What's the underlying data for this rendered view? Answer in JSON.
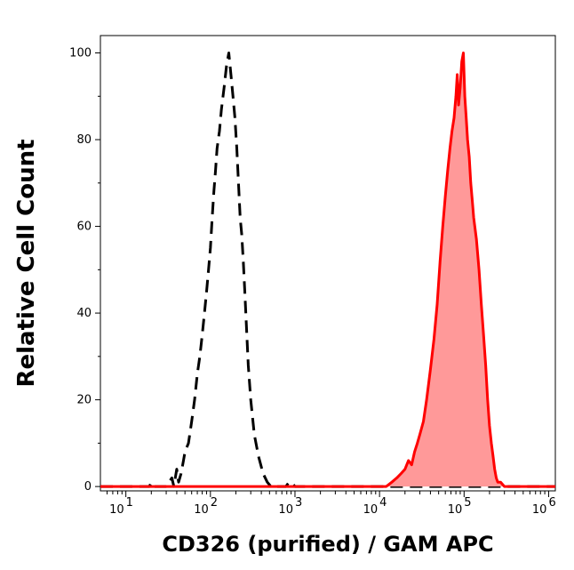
{
  "chart_data": {
    "type": "area",
    "xlabel": "CD326 (purified) / GAM APC",
    "ylabel": "Relative Cell Count",
    "x_scale": "log",
    "xlim": [
      5,
      1200000
    ],
    "ylim": [
      -1,
      104
    ],
    "x_ticks": [
      {
        "value": 10,
        "base": "10",
        "exp": "1"
      },
      {
        "value": 100,
        "base": "10",
        "exp": "2"
      },
      {
        "value": 1000,
        "base": "10",
        "exp": "3"
      },
      {
        "value": 10000,
        "base": "10",
        "exp": "4"
      },
      {
        "value": 100000,
        "base": "10",
        "exp": "5"
      },
      {
        "value": 1000000,
        "base": "10",
        "exp": "6"
      }
    ],
    "y_ticks": [
      0,
      20,
      40,
      60,
      80,
      100
    ],
    "grid": false,
    "legend": "none",
    "series": [
      {
        "style": "dashed",
        "color": "#000000",
        "fill": false,
        "points": [
          [
            5,
            0
          ],
          [
            19,
            0
          ],
          [
            20,
            1
          ],
          [
            22,
            0
          ],
          [
            30,
            0
          ],
          [
            35,
            2
          ],
          [
            37,
            0
          ],
          [
            40,
            4
          ],
          [
            42,
            1
          ],
          [
            45,
            3
          ],
          [
            48,
            6
          ],
          [
            50,
            8
          ],
          [
            55,
            10
          ],
          [
            60,
            15
          ],
          [
            65,
            20
          ],
          [
            70,
            26
          ],
          [
            75,
            30
          ],
          [
            80,
            35
          ],
          [
            85,
            40
          ],
          [
            90,
            45
          ],
          [
            95,
            50
          ],
          [
            100,
            55
          ],
          [
            105,
            62
          ],
          [
            110,
            68
          ],
          [
            115,
            73
          ],
          [
            120,
            78
          ],
          [
            128,
            82
          ],
          [
            135,
            87
          ],
          [
            145,
            92
          ],
          [
            155,
            97
          ],
          [
            165,
            100
          ],
          [
            175,
            95
          ],
          [
            185,
            90
          ],
          [
            195,
            85
          ],
          [
            205,
            78
          ],
          [
            215,
            70
          ],
          [
            225,
            62
          ],
          [
            235,
            58
          ],
          [
            245,
            52
          ],
          [
            255,
            45
          ],
          [
            265,
            38
          ],
          [
            280,
            28
          ],
          [
            300,
            20
          ],
          [
            330,
            12
          ],
          [
            370,
            7
          ],
          [
            420,
            3
          ],
          [
            470,
            1
          ],
          [
            520,
            0
          ],
          [
            580,
            0
          ],
          [
            780,
            0
          ],
          [
            850,
            1
          ],
          [
            900,
            1
          ],
          [
            1000,
            0
          ],
          [
            2000,
            0
          ],
          [
            1200000,
            0
          ]
        ]
      },
      {
        "style": "solid",
        "color": "#ff0000",
        "fill": true,
        "fill_color": "#ff9999",
        "points": [
          [
            5,
            0
          ],
          [
            12000,
            0
          ],
          [
            14000,
            1
          ],
          [
            16000,
            2
          ],
          [
            18000,
            3
          ],
          [
            20000,
            4
          ],
          [
            22000,
            6
          ],
          [
            24000,
            5
          ],
          [
            26000,
            8
          ],
          [
            28000,
            10
          ],
          [
            30000,
            12
          ],
          [
            33000,
            15
          ],
          [
            36000,
            20
          ],
          [
            40000,
            27
          ],
          [
            44000,
            34
          ],
          [
            48000,
            42
          ],
          [
            52000,
            52
          ],
          [
            56000,
            60
          ],
          [
            60000,
            67
          ],
          [
            64000,
            73
          ],
          [
            68000,
            78
          ],
          [
            72000,
            82
          ],
          [
            76000,
            85
          ],
          [
            80000,
            90
          ],
          [
            83000,
            95
          ],
          [
            86000,
            88
          ],
          [
            90000,
            92
          ],
          [
            94000,
            98
          ],
          [
            98000,
            100
          ],
          [
            102000,
            90
          ],
          [
            106000,
            85
          ],
          [
            110000,
            80
          ],
          [
            115000,
            76
          ],
          [
            120000,
            70
          ],
          [
            125000,
            66
          ],
          [
            130000,
            62
          ],
          [
            140000,
            57
          ],
          [
            150000,
            50
          ],
          [
            160000,
            42
          ],
          [
            170000,
            35
          ],
          [
            180000,
            28
          ],
          [
            190000,
            20
          ],
          [
            200000,
            14
          ],
          [
            210000,
            10
          ],
          [
            220000,
            7
          ],
          [
            230000,
            4
          ],
          [
            240000,
            2
          ],
          [
            250000,
            1
          ],
          [
            270000,
            1
          ],
          [
            300000,
            0
          ],
          [
            1200000,
            0
          ]
        ]
      }
    ]
  }
}
